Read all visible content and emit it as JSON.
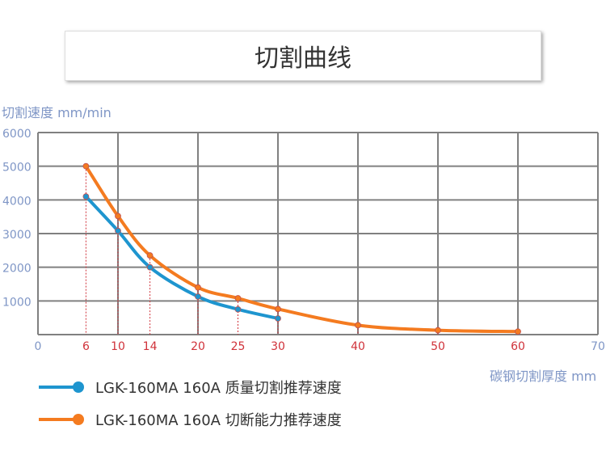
{
  "header": {
    "title": "切割曲线"
  },
  "chart_data": {
    "type": "line",
    "title": "切割曲线",
    "ylabel": "切割速度 mm/min",
    "xlabel": "碳钢切割厚度 mm",
    "xlim": [
      0,
      70
    ],
    "ylim": [
      0,
      6000
    ],
    "x_ticks": [
      0,
      10,
      20,
      30,
      40,
      50,
      60,
      70
    ],
    "y_ticks": [
      1000,
      2000,
      3000,
      4000,
      5000,
      6000
    ],
    "marked_x_ticks": [
      6,
      10,
      14,
      20,
      25,
      30,
      40,
      50,
      60
    ],
    "grid": true,
    "legend_position": "bottom-left",
    "series": [
      {
        "name": "LGK-160MA 160A 质量切割推荐速度",
        "color": "#1e95cf",
        "x": [
          6,
          10,
          14,
          20,
          25,
          30
        ],
        "y": [
          4100,
          3080,
          2000,
          1130,
          750,
          480
        ]
      },
      {
        "name": "LGK-160MA 160A 切断能力推荐速度",
        "color": "#f47b20",
        "x": [
          6,
          10,
          14,
          20,
          25,
          30,
          40,
          50,
          60
        ],
        "y": [
          5000,
          3520,
          2350,
          1400,
          1080,
          760,
          280,
          130,
          90
        ]
      }
    ],
    "colors": {
      "axis_text": "#7f96c6",
      "marked_text": "#d0323a",
      "grid": "#808080"
    }
  }
}
